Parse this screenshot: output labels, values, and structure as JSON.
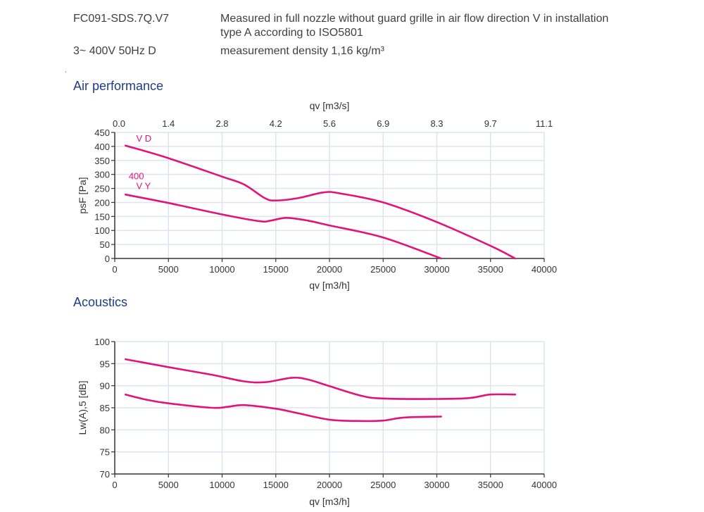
{
  "header": {
    "model": "FC091-SDS.7Q.V7",
    "supply": "3~ 400V 50Hz D",
    "measurement_line1": "Measured in full nozzle without guard grille in air flow direction V in installation",
    "measurement_line2": "type A according to ISO5801",
    "density": "measurement density 1,16 kg/m³"
  },
  "sections": {
    "air_title": "Air performance",
    "acoustics_title": "Acoustics"
  },
  "colors": {
    "curve": "#e0147a",
    "grid": "#dde4ee",
    "axis": "#333333",
    "title": "#1f3c88"
  },
  "chart_data": [
    {
      "type": "line",
      "title": "Air performance",
      "xlabel": "qv [m3/h]",
      "ylabel": "psF [Pa]",
      "x2label": "qv [m3/s]",
      "xlim": [
        0,
        40000
      ],
      "ylim": [
        0,
        450
      ],
      "xticks": [
        "0",
        "5000",
        "10000",
        "15000",
        "20000",
        "25000",
        "30000",
        "35000",
        "40000"
      ],
      "xtick_values": [
        0,
        5000,
        10000,
        15000,
        20000,
        25000,
        30000,
        35000,
        40000
      ],
      "x2ticks": [
        "0.0",
        "1.4",
        "2.8",
        "4.2",
        "5.6",
        "6.9",
        "8.3",
        "9.7",
        "11.1"
      ],
      "yticks": [
        "0",
        "50",
        "100",
        "150",
        "200",
        "250",
        "300",
        "350",
        "400",
        "450"
      ],
      "ytick_values": [
        0,
        50,
        100,
        150,
        200,
        250,
        300,
        350,
        400,
        450
      ],
      "grid": true,
      "annotations": [
        {
          "text": "V D",
          "x": 2000,
          "y": 430
        },
        {
          "text": "400",
          "x": 1300,
          "y": 295
        },
        {
          "text": "V Y",
          "x": 2000,
          "y": 260
        }
      ],
      "series": [
        {
          "name": "V D",
          "x": [
            1000,
            5000,
            10000,
            12000,
            14000,
            15000,
            17000,
            19500,
            21000,
            25000,
            30000,
            35000,
            37300
          ],
          "y": [
            403,
            358,
            292,
            265,
            215,
            207,
            215,
            236,
            232,
            200,
            130,
            45,
            0
          ]
        },
        {
          "name": "V Y",
          "x": [
            1000,
            5000,
            10000,
            13500,
            14500,
            16000,
            18000,
            20000,
            25000,
            30400
          ],
          "y": [
            228,
            198,
            157,
            133,
            135,
            145,
            135,
            118,
            75,
            0
          ]
        }
      ]
    },
    {
      "type": "line",
      "title": "Acoustics",
      "xlabel": "qv [m3/h]",
      "ylabel": "Lw(A),5 [dB]",
      "xlim": [
        0,
        40000
      ],
      "ylim": [
        70,
        100
      ],
      "xticks": [
        "0",
        "5000",
        "10000",
        "15000",
        "20000",
        "25000",
        "30000",
        "35000",
        "40000"
      ],
      "xtick_values": [
        0,
        5000,
        10000,
        15000,
        20000,
        25000,
        30000,
        35000,
        40000
      ],
      "yticks": [
        "70",
        "75",
        "80",
        "85",
        "90",
        "95",
        "100"
      ],
      "ytick_values": [
        70,
        75,
        80,
        85,
        90,
        95,
        100
      ],
      "grid": true,
      "series": [
        {
          "name": "V D",
          "x": [
            1000,
            5000,
            9000,
            12000,
            14000,
            16500,
            18000,
            20000,
            23000,
            25000,
            30000,
            33000,
            35000,
            37300
          ],
          "y": [
            96,
            94.2,
            92.5,
            91,
            90.8,
            91.8,
            91.4,
            89.9,
            87.7,
            87.1,
            87,
            87.2,
            88,
            88
          ]
        },
        {
          "name": "V Y",
          "x": [
            1000,
            3000,
            5000,
            9000,
            10500,
            12000,
            15000,
            17000,
            20000,
            23000,
            25000,
            27000,
            30400
          ],
          "y": [
            88,
            86.8,
            86,
            85,
            85.2,
            85.6,
            84.8,
            83.8,
            82.3,
            82,
            82.1,
            82.8,
            83
          ]
        }
      ]
    }
  ]
}
